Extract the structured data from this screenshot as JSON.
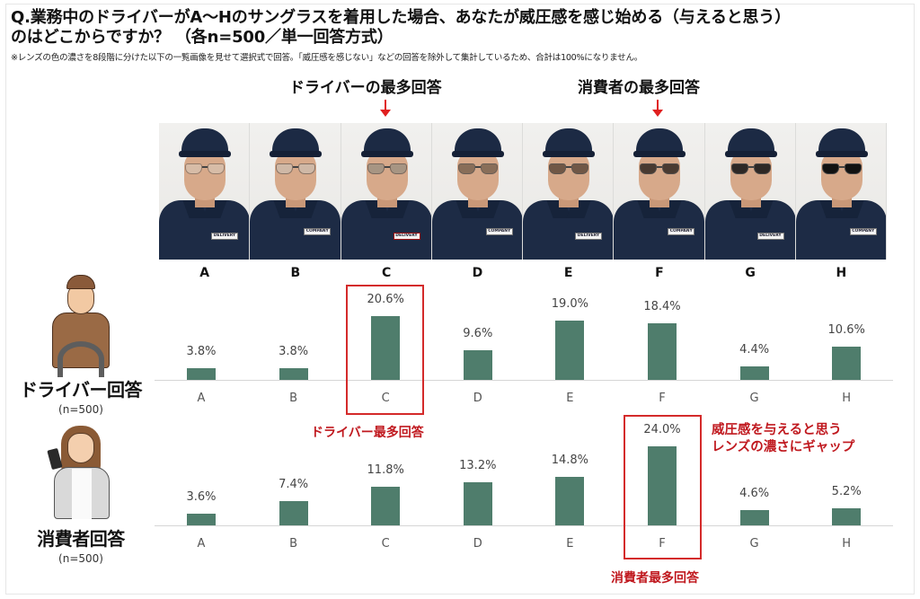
{
  "header": {
    "title_line1": "Q.業務中のドライバーがA～Hのサングラスを着用した場合、あなたが威圧感を感じ始める（与えると思う）",
    "title_line2": "のはどこからですか？ （各n=500／単一回答方式）",
    "note": "※レンズの色の濃さを8段階に分けた以下の一覧画像を見せて選択式で回答。「威圧感を感じない」などの回答を除外して集計しているため、合計は100%になりません。"
  },
  "callouts": {
    "driver_most": "ドライバーの最多回答",
    "consumer_most": "消費者の最多回答"
  },
  "photos": [
    {
      "letter": "A",
      "badge": "DELIVERY",
      "lens_color": "#d8d4cc",
      "lens_opacity": 0.15
    },
    {
      "letter": "B",
      "badge": "COMPANY",
      "lens_color": "#c9c6bf",
      "lens_opacity": 0.3
    },
    {
      "letter": "C",
      "badge": "DELIVERY",
      "lens_color": "#8e8a80",
      "lens_opacity": 0.45
    },
    {
      "letter": "D",
      "badge": "COMPANY",
      "lens_color": "#6e5a48",
      "lens_opacity": 0.6
    },
    {
      "letter": "E",
      "badge": "DELIVERY",
      "lens_color": "#5a4638",
      "lens_opacity": 0.72
    },
    {
      "letter": "F",
      "badge": "COMPANY",
      "lens_color": "#3a2e28",
      "lens_opacity": 0.85
    },
    {
      "letter": "G",
      "badge": "DELIVERY",
      "lens_color": "#252220",
      "lens_opacity": 0.92
    },
    {
      "letter": "H",
      "badge": "COMPANY",
      "lens_color": "#111111",
      "lens_opacity": 1.0
    }
  ],
  "personas": {
    "driver": {
      "label": "ドライバー回答",
      "n": "(n=500)"
    },
    "consumer": {
      "label": "消費者回答",
      "n": "(n=500)"
    }
  },
  "highlights": {
    "driver_label": "ドライバー最多回答",
    "consumer_label": "消費者最多回答",
    "gap_line1": "威圧感を与えると思う",
    "gap_line2": "レンズの濃さにギャップ"
  },
  "colors": {
    "bar": "#4f7d6c",
    "highlight": "#d42a2a",
    "highlight_text": "#c0191f"
  },
  "chart_data": [
    {
      "type": "bar",
      "title": "ドライバー回答 (n=500)",
      "categories": [
        "A",
        "B",
        "C",
        "D",
        "E",
        "F",
        "G",
        "H"
      ],
      "values": [
        3.8,
        3.8,
        20.6,
        9.6,
        19.0,
        18.4,
        4.4,
        10.6
      ],
      "value_labels": [
        "3.8%",
        "3.8%",
        "20.6%",
        "9.6%",
        "19.0%",
        "18.4%",
        "4.4%",
        "10.6%"
      ],
      "xlabel": "",
      "ylabel": "%",
      "highlight": "C",
      "highlight_label": "ドライバー最多回答"
    },
    {
      "type": "bar",
      "title": "消費者回答 (n=500)",
      "categories": [
        "A",
        "B",
        "C",
        "D",
        "E",
        "F",
        "G",
        "H"
      ],
      "values": [
        3.6,
        7.4,
        11.8,
        13.2,
        14.8,
        24.0,
        4.6,
        5.2
      ],
      "value_labels": [
        "3.6%",
        "7.4%",
        "11.8%",
        "13.2%",
        "14.8%",
        "24.0%",
        "4.6%",
        "5.2%"
      ],
      "xlabel": "",
      "ylabel": "%",
      "highlight": "F",
      "highlight_label": "消費者最多回答"
    }
  ]
}
